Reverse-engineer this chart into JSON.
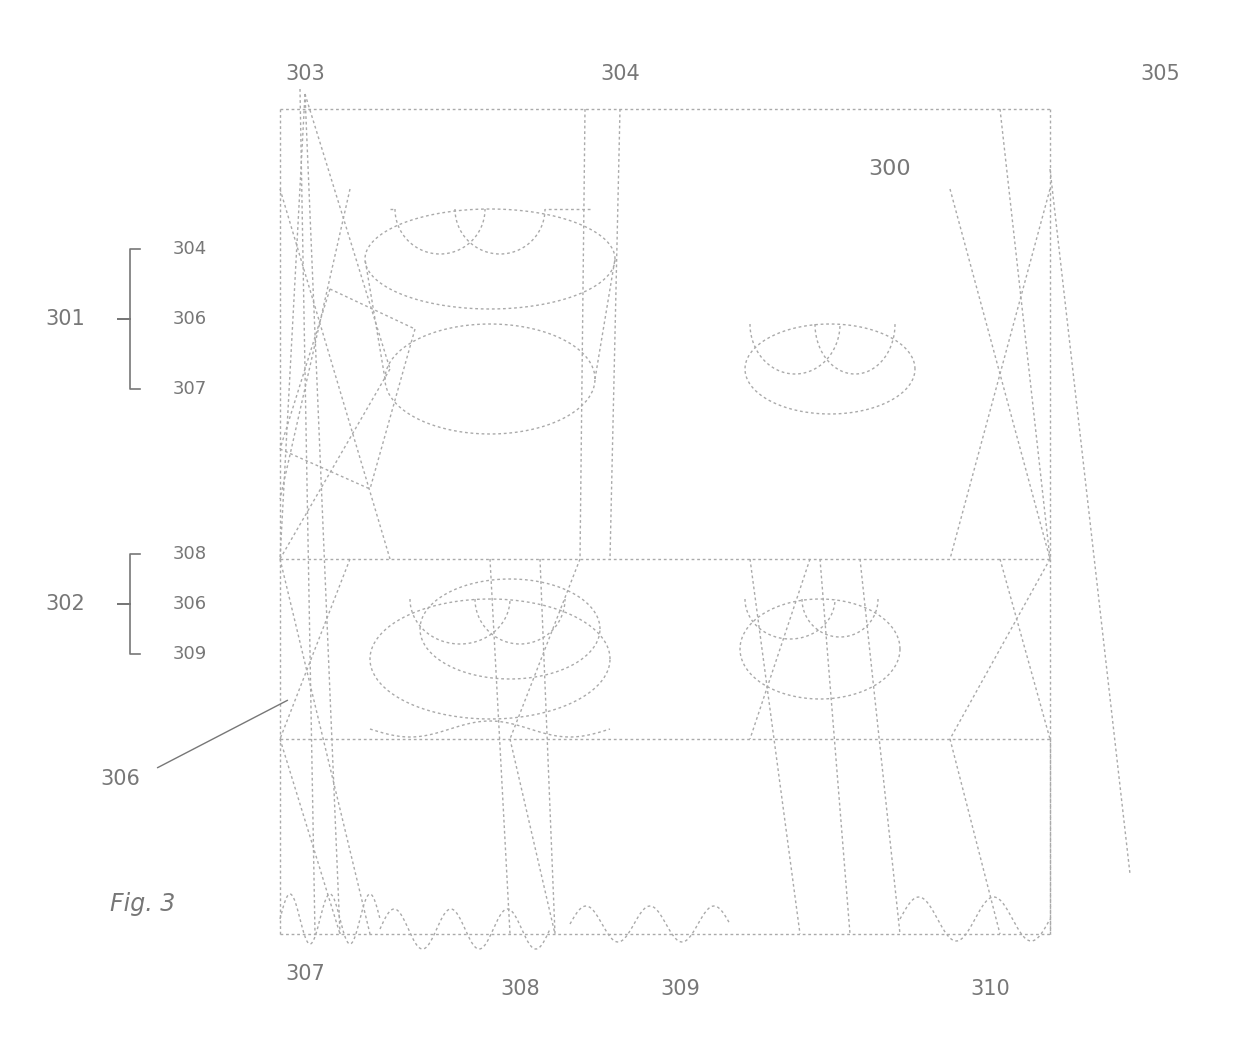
{
  "background_color": "#ffffff",
  "line_color": "#aaaaaa",
  "text_color": "#888888",
  "fig_label": "Fig. 3"
}
